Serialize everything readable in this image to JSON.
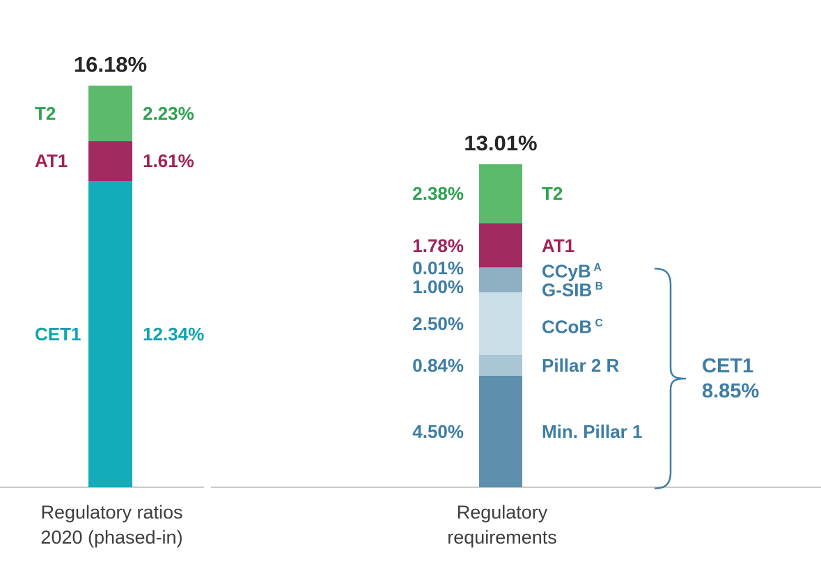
{
  "chart_data": {
    "type": "bar",
    "subtype": "stacked-bar",
    "unit": "%",
    "grid": false,
    "legend": "none",
    "baseline_color": "#C9C9C9",
    "total_text_color": "#262626",
    "axis_text_color": "#3E3E3D",
    "bars": [
      {
        "id": "regulatory-ratios-2020",
        "axis_label_lines": [
          "Regulatory ratios",
          "2020 (phased-in)"
        ],
        "total": 16.18,
        "total_label": "16.18%",
        "segments_bottom_up": [
          {
            "name": "CET1",
            "value": 12.34,
            "value_label": "12.34%",
            "color": "#13ACBA",
            "text_color": "#0EA3B1"
          },
          {
            "name": "AT1",
            "value": 1.61,
            "value_label": "1.61%",
            "color": "#A12A60",
            "text_color": "#A02258"
          },
          {
            "name": "T2",
            "value": 2.23,
            "value_label": "2.23%",
            "color": "#5CBA6C",
            "text_color": "#2DA150"
          }
        ]
      },
      {
        "id": "regulatory-requirements",
        "axis_label_lines": [
          "Regulatory",
          "requirements"
        ],
        "total": 13.01,
        "total_label": "13.01%",
        "segments_bottom_up": [
          {
            "name": "Min. Pillar 1",
            "value": 4.5,
            "value_label": "4.50%",
            "color": "#5E90AD",
            "text_color": "#3E7DA4"
          },
          {
            "name": "Pillar 2 R",
            "value": 0.84,
            "value_label": "0.84%",
            "color": "#A9C6D5",
            "text_color": "#3E7DA4"
          },
          {
            "name": "CCoB",
            "superscript": "C",
            "value": 2.5,
            "value_label": "2.50%",
            "color": "#CBDFE9",
            "text_color": "#3E7DA4"
          },
          {
            "name": "G-SIB",
            "superscript": "B",
            "value": 1.0,
            "value_label": "1.00%",
            "color": "#8FB0C3",
            "text_color": "#3E7DA4"
          },
          {
            "name": "CCyB",
            "superscript": "A",
            "value": 0.01,
            "value_label": "0.01%",
            "color": "#7FA6BD",
            "text_color": "#3E7DA4"
          },
          {
            "name": "AT1",
            "value": 1.78,
            "value_label": "1.78%",
            "color": "#A12A60",
            "text_color": "#A02258"
          },
          {
            "name": "T2",
            "value": 2.38,
            "value_label": "2.38%",
            "color": "#5CBA6C",
            "text_color": "#2DA150"
          }
        ],
        "bracket": {
          "label_lines": [
            "CET1",
            "8.85%"
          ],
          "total": 8.85,
          "covers_bottom_up_count": 5,
          "color": "#3E7DA4"
        }
      }
    ]
  }
}
